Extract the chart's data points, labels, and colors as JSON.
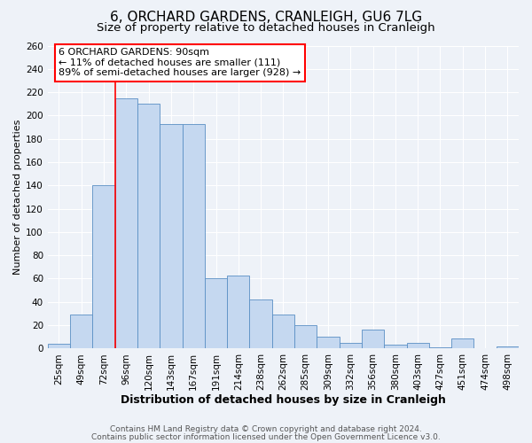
{
  "title": "6, ORCHARD GARDENS, CRANLEIGH, GU6 7LG",
  "subtitle": "Size of property relative to detached houses in Cranleigh",
  "xlabel": "Distribution of detached houses by size in Cranleigh",
  "ylabel": "Number of detached properties",
  "bin_labels": [
    "25sqm",
    "49sqm",
    "72sqm",
    "96sqm",
    "120sqm",
    "143sqm",
    "167sqm",
    "191sqm",
    "214sqm",
    "238sqm",
    "262sqm",
    "285sqm",
    "309sqm",
    "332sqm",
    "356sqm",
    "380sqm",
    "403sqm",
    "427sqm",
    "451sqm",
    "474sqm",
    "498sqm"
  ],
  "bar_values": [
    4,
    29,
    140,
    215,
    210,
    193,
    193,
    60,
    63,
    42,
    29,
    20,
    10,
    5,
    16,
    3,
    5,
    1,
    9,
    0,
    2
  ],
  "bar_color": "#c5d8f0",
  "bar_edge_color": "#5a8fc4",
  "vline_x": 3,
  "vline_color": "red",
  "ylim": [
    0,
    260
  ],
  "yticks": [
    0,
    20,
    40,
    60,
    80,
    100,
    120,
    140,
    160,
    180,
    200,
    220,
    240,
    260
  ],
  "annotation_text": "6 ORCHARD GARDENS: 90sqm\n← 11% of detached houses are smaller (111)\n89% of semi-detached houses are larger (928) →",
  "annotation_box_facecolor": "white",
  "annotation_box_edgecolor": "red",
  "footer_line1": "Contains HM Land Registry data © Crown copyright and database right 2024.",
  "footer_line2": "Contains public sector information licensed under the Open Government Licence v3.0.",
  "background_color": "#eef2f8",
  "plot_bg_color": "#eef2f8",
  "grid_color": "white",
  "title_fontsize": 11,
  "subtitle_fontsize": 9.5,
  "xlabel_fontsize": 9,
  "ylabel_fontsize": 8,
  "tick_fontsize": 7.5,
  "annotation_fontsize": 8,
  "footer_fontsize": 6.5
}
